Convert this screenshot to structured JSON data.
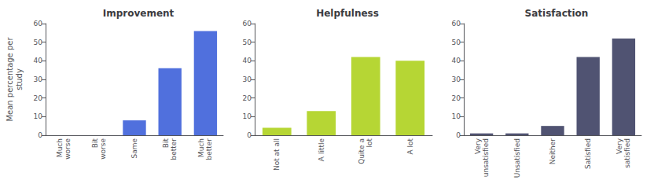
{
  "chart_data": [
    {
      "type": "bar",
      "title": "Improvement",
      "categories": [
        "Much\nworse",
        "Bit\nworse",
        "Same",
        "Bit\nbetter",
        "Much\nbetter"
      ],
      "values": [
        0,
        0,
        8,
        36,
        56
      ],
      "ylabel": "Mean percentage per\nstudy",
      "ylim": [
        0,
        60
      ],
      "yticks": [
        0,
        10,
        20,
        30,
        40,
        50,
        60
      ],
      "grid": false
    },
    {
      "type": "bar",
      "title": "Helpfulness",
      "categories": [
        "Not at all",
        "A little",
        "Quite a\nlot",
        "A lot"
      ],
      "values": [
        4,
        13,
        42,
        40
      ],
      "ylim": [
        0,
        60
      ],
      "yticks": [
        0,
        10,
        20,
        30,
        40,
        50,
        60
      ],
      "grid": false
    },
    {
      "type": "bar",
      "title": "Satisfaction",
      "categories": [
        "Very\nunsatisfied",
        "Unsatisfied",
        "Neither",
        "Satisfied",
        "Very\nsatisfied"
      ],
      "values": [
        1,
        1,
        5,
        42,
        52
      ],
      "ylim": [
        0,
        60
      ],
      "yticks": [
        0,
        10,
        20,
        30,
        40,
        50,
        60
      ],
      "grid": false
    }
  ]
}
